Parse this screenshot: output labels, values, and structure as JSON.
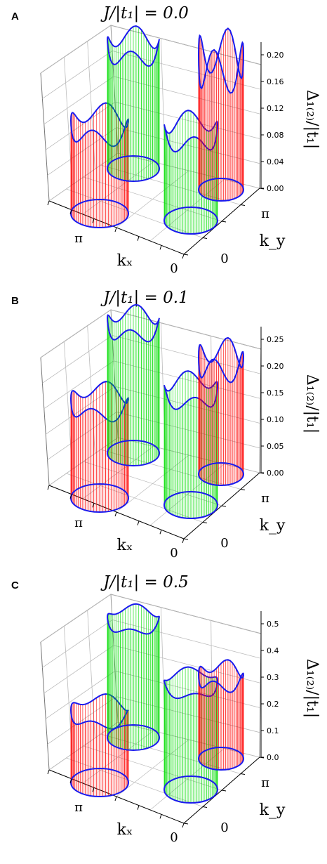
{
  "chart_data": [
    {
      "type": "3d-surface",
      "panel": "A",
      "title": "J/|t₁| = 0.0",
      "zlabel": "Δ₁₍₂₎/|t₁|",
      "xlabel": "kₓ",
      "ylabel": "k_y",
      "x_ticks": [
        "π",
        "0"
      ],
      "y_ticks": [
        "π",
        "0"
      ],
      "z_ticks": [
        "0.00",
        "0.04",
        "0.08",
        "0.12",
        "0.16",
        "0.20"
      ],
      "zlim": [
        0,
        0.22
      ],
      "cylinders": [
        {
          "color": "#ff0000",
          "base": 0.12,
          "amp": 0.012,
          "phase": 0.6
        },
        {
          "color": "#00dd00",
          "base": 0.165,
          "amp": 0.012,
          "phase": 1.2
        },
        {
          "color": "#00dd00",
          "base": 0.12,
          "amp": 0.012,
          "phase": 2.0
        },
        {
          "color": "#ff0000",
          "base": 0.175,
          "amp": 0.03,
          "phase": 0.3
        }
      ]
    },
    {
      "type": "3d-surface",
      "panel": "B",
      "title": "J/|t₁| = 0.1",
      "zlabel": "Δ₁₍₂₎/|t₁|",
      "xlabel": "kₓ",
      "ylabel": "k_y",
      "x_ticks": [
        "π",
        "0"
      ],
      "y_ticks": [
        "π",
        "0"
      ],
      "z_ticks": [
        "0.00",
        "0.05",
        "0.10",
        "0.15",
        "0.20",
        "0.25"
      ],
      "zlim": [
        0,
        0.27
      ],
      "cylinders": [
        {
          "color": "#ff0000",
          "base": 0.16,
          "amp": 0.012,
          "phase": 0.5
        },
        {
          "color": "#00dd00",
          "base": 0.215,
          "amp": 0.012,
          "phase": 1.1
        },
        {
          "color": "#00dd00",
          "base": 0.19,
          "amp": 0.012,
          "phase": 2.1
        },
        {
          "color": "#ff0000",
          "base": 0.19,
          "amp": 0.02,
          "phase": 0.3
        }
      ]
    },
    {
      "type": "3d-surface",
      "panel": "C",
      "title": "J/|t₁| = 0.5",
      "zlabel": "Δ₁₍₂₎/|t₁|",
      "xlabel": "kₓ",
      "ylabel": "k_y",
      "x_ticks": [
        "π",
        "0"
      ],
      "y_ticks": [
        "π",
        "0"
      ],
      "z_ticks": [
        "0.0",
        "0.1",
        "0.2",
        "0.3",
        "0.4",
        "0.5"
      ],
      "zlim": [
        0,
        0.55
      ],
      "cylinders": [
        {
          "color": "#ff0000",
          "base": 0.24,
          "amp": 0.015,
          "phase": 0.5
        },
        {
          "color": "#00dd00",
          "base": 0.4,
          "amp": 0.012,
          "phase": 1.1
        },
        {
          "color": "#00dd00",
          "base": 0.36,
          "amp": 0.012,
          "phase": 2.1
        },
        {
          "color": "#ff0000",
          "base": 0.28,
          "amp": 0.02,
          "phase": 0.3
        }
      ]
    }
  ]
}
